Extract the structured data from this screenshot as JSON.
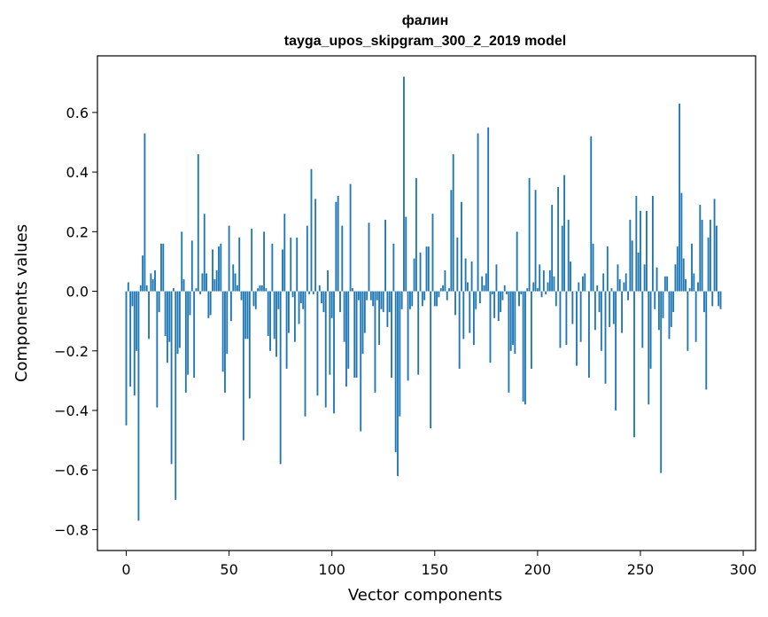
{
  "chart_data": {
    "type": "bar",
    "title": "фалин",
    "subtitle": "tayga_upos_skipgram_300_2_2019 model",
    "xlabel": "Vector components",
    "ylabel": "Components values",
    "xlim": [
      -14,
      306
    ],
    "ylim": [
      -0.87,
      0.79
    ],
    "xticks": [
      0,
      50,
      100,
      150,
      200,
      250,
      300
    ],
    "xtick_labels": [
      "0",
      "50",
      "100",
      "150",
      "200",
      "250",
      "300"
    ],
    "yticks": [
      -0.8,
      -0.6,
      -0.4,
      -0.2,
      0.0,
      0.2,
      0.4,
      0.6
    ],
    "ytick_labels": [
      "−0.8",
      "−0.6",
      "−0.4",
      "−0.2",
      "0.0",
      "0.2",
      "0.4",
      "0.6"
    ],
    "grid": false,
    "bar_color": "#1f77b4",
    "values": [
      -0.45,
      0.03,
      -0.32,
      -0.05,
      -0.35,
      -0.2,
      -0.77,
      0.02,
      0.12,
      0.53,
      0.02,
      -0.16,
      0.06,
      0.04,
      0.07,
      -0.39,
      -0.07,
      0.16,
      0.16,
      -0.15,
      -0.24,
      -0.17,
      -0.58,
      0.01,
      -0.7,
      -0.21,
      -0.19,
      0.2,
      0.04,
      -0.34,
      -0.28,
      -0.08,
      0.17,
      -0.29,
      0.01,
      0.46,
      -0.01,
      0.06,
      0.26,
      0.06,
      -0.09,
      -0.08,
      0.14,
      0.04,
      0.07,
      0.15,
      0.16,
      -0.27,
      -0.34,
      -0.21,
      0.22,
      -0.1,
      0.09,
      0.06,
      0.02,
      0.18,
      -0.03,
      -0.5,
      -0.16,
      -0.16,
      -0.36,
      0.21,
      -0.05,
      -0.06,
      0.01,
      0.02,
      0.02,
      0.2,
      0.01,
      -0.15,
      -0.2,
      0.16,
      -0.16,
      -0.22,
      -0.06,
      -0.58,
      0.14,
      0.26,
      -0.26,
      -0.14,
      0.18,
      -0.02,
      -0.17,
      0.18,
      -0.11,
      -0.04,
      -0.06,
      -0.42,
      0.22,
      -0.01,
      0.41,
      -0.01,
      0.31,
      -0.35,
      0.02,
      -0.04,
      -0.07,
      -0.39,
      0.07,
      -0.28,
      -0.09,
      -0.41,
      0.3,
      0.32,
      -0.07,
      0.22,
      -0.17,
      -0.32,
      -0.26,
      0.36,
      0.01,
      -0.29,
      -0.29,
      -0.03,
      -0.47,
      -0.21,
      -0.14,
      -0.03,
      0.23,
      -0.03,
      -0.05,
      -0.34,
      -0.03,
      -0.18,
      -0.06,
      -0.07,
      0.24,
      -0.12,
      -0.07,
      -0.29,
      0.16,
      -0.54,
      -0.62,
      -0.42,
      -0.06,
      0.72,
      0.25,
      -0.3,
      -0.06,
      -0.05,
      0.11,
      0.38,
      -0.28,
      0.13,
      -0.05,
      -0.03,
      0.15,
      0.15,
      -0.46,
      0.26,
      -0.05,
      -0.05,
      -0.02,
      0.01,
      0.02,
      0.07,
      -0.03,
      0.01,
      0.34,
      0.46,
      -0.08,
      0.18,
      -0.26,
      0.3,
      -0.16,
      0.11,
      0.03,
      -0.14,
      0.1,
      -0.18,
      -0.06,
      0.53,
      -0.04,
      0.05,
      0.02,
      0.06,
      0.55,
      -0.24,
      -0.01,
      -0.09,
      0.09,
      -0.1,
      -0.07,
      -0.03,
      0.02,
      -0.01,
      -0.34,
      -0.2,
      -0.18,
      -0.21,
      0.2,
      -0.05,
      -0.01,
      -0.37,
      -0.38,
      0.01,
      0.38,
      -0.26,
      0.03,
      0.34,
      0.01,
      0.09,
      -0.02,
      0.07,
      -0.01,
      0.03,
      0.07,
      0.29,
      0.05,
      -0.05,
      0.35,
      -0.19,
      0.22,
      0.39,
      -0.18,
      0.24,
      0.1,
      -0.11,
      0.0,
      -0.25,
      0.03,
      -0.17,
      0.05,
      0.06,
      0.0,
      -0.29,
      0.52,
      0.16,
      -0.13,
      0.02,
      -0.07,
      -0.2,
      0.06,
      -0.31,
      0.15,
      -0.12,
      0.01,
      -0.11,
      -0.4,
      0.09,
      0.04,
      -0.14,
      0.03,
      0.06,
      -0.03,
      0.24,
      0.17,
      -0.49,
      0.32,
      0.13,
      0.27,
      -0.19,
      0.09,
      0.27,
      -0.38,
      -0.26,
      0.32,
      -0.06,
      0.08,
      -0.13,
      -0.61,
      -0.09,
      0.05,
      0.05,
      -0.16,
      -0.12,
      -0.07,
      0.09,
      0.15,
      0.63,
      0.33,
      0.11,
      0.04,
      -0.2,
      0.01,
      0.16,
      0.06,
      -0.17,
      0.03,
      0.29,
      0.24,
      -0.07,
      -0.33,
      0.18,
      0.24,
      -0.05,
      0.31,
      0.22,
      -0.05,
      -0.06
    ]
  }
}
